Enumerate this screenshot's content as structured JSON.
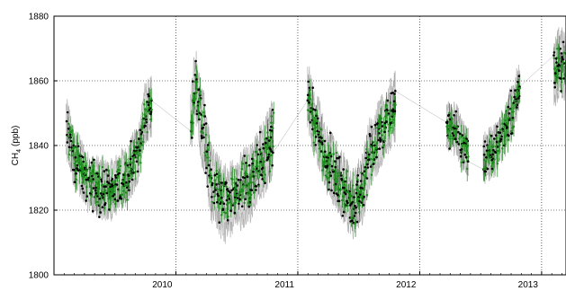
{
  "chart_data": {
    "type": "scatter",
    "title": "",
    "xlabel": "",
    "ylabel": "CH",
    "ylabel_sub": "4",
    "ylabel_unit": "(ppb)",
    "xlim": [
      2009.0,
      2013.2
    ],
    "ylim": [
      1800,
      1880
    ],
    "y_ticks": [
      1800,
      1820,
      1840,
      1860,
      1880
    ],
    "y_tick_labels": [
      "1800",
      "1820",
      "1840",
      "1860",
      "1880"
    ],
    "x_ticks": [
      2010,
      2011,
      2012,
      2013
    ],
    "x_tick_labels": [
      "2010",
      "2011",
      "2012",
      "2013"
    ],
    "grid": true,
    "colors": {
      "black_series": "#000000",
      "green_series": "#1a8a1a",
      "band": "#b0b0b0",
      "grid": "#000000"
    },
    "segments": [
      {
        "start": 2009.1,
        "end": 2009.8,
        "ctrl": [
          [
            2009.1,
            1845
          ],
          [
            2009.18,
            1835
          ],
          [
            2009.3,
            1828
          ],
          [
            2009.45,
            1826
          ],
          [
            2009.58,
            1830
          ],
          [
            2009.68,
            1836
          ],
          [
            2009.75,
            1850
          ],
          [
            2009.8,
            1852
          ]
        ],
        "band": 7
      },
      {
        "start": 2010.12,
        "end": 2010.8,
        "ctrl": [
          [
            2010.12,
            1848
          ],
          [
            2010.16,
            1858
          ],
          [
            2010.22,
            1845
          ],
          [
            2010.3,
            1828
          ],
          [
            2010.4,
            1822
          ],
          [
            2010.5,
            1825
          ],
          [
            2010.6,
            1828
          ],
          [
            2010.7,
            1835
          ],
          [
            2010.8,
            1842
          ]
        ],
        "band": 9
      },
      {
        "start": 2011.08,
        "end": 2011.8,
        "ctrl": [
          [
            2011.08,
            1855
          ],
          [
            2011.15,
            1845
          ],
          [
            2011.25,
            1835
          ],
          [
            2011.35,
            1828
          ],
          [
            2011.45,
            1822
          ],
          [
            2011.52,
            1826
          ],
          [
            2011.6,
            1838
          ],
          [
            2011.7,
            1845
          ],
          [
            2011.8,
            1852
          ]
        ],
        "band": 8
      },
      {
        "start": 2012.22,
        "end": 2012.4,
        "ctrl": [
          [
            2012.22,
            1846
          ],
          [
            2012.3,
            1845
          ],
          [
            2012.35,
            1840
          ],
          [
            2012.4,
            1838
          ]
        ],
        "band": 6
      },
      {
        "start": 2012.52,
        "end": 2012.82,
        "ctrl": [
          [
            2012.52,
            1836
          ],
          [
            2012.6,
            1838
          ],
          [
            2012.68,
            1843
          ],
          [
            2012.75,
            1850
          ],
          [
            2012.82,
            1858
          ]
        ],
        "band": 6
      },
      {
        "start": 2013.1,
        "end": 2013.2,
        "ctrl": [
          [
            2013.1,
            1862
          ],
          [
            2013.15,
            1866
          ],
          [
            2013.2,
            1864
          ]
        ],
        "band": 8
      }
    ],
    "series": [
      {
        "color": "black",
        "points": []
      },
      {
        "color": "green",
        "points": []
      }
    ]
  }
}
